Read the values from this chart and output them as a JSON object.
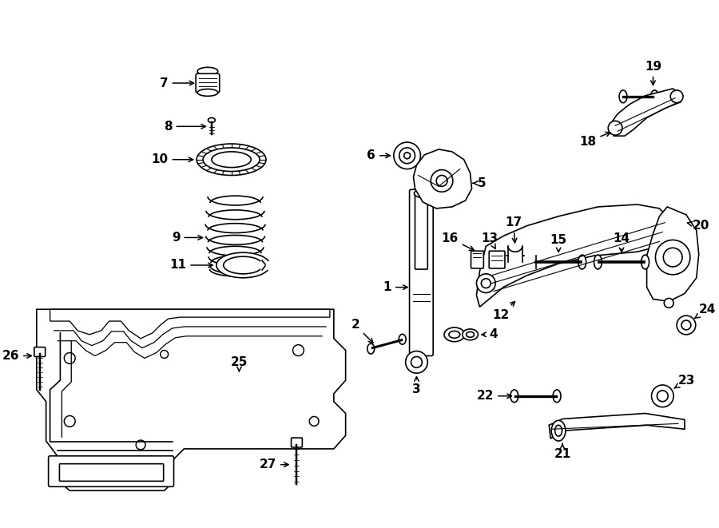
{
  "background": "#ffffff",
  "lc": "#000000",
  "lw": 1.2,
  "fig_w": 9.0,
  "fig_h": 6.61,
  "dpi": 100
}
